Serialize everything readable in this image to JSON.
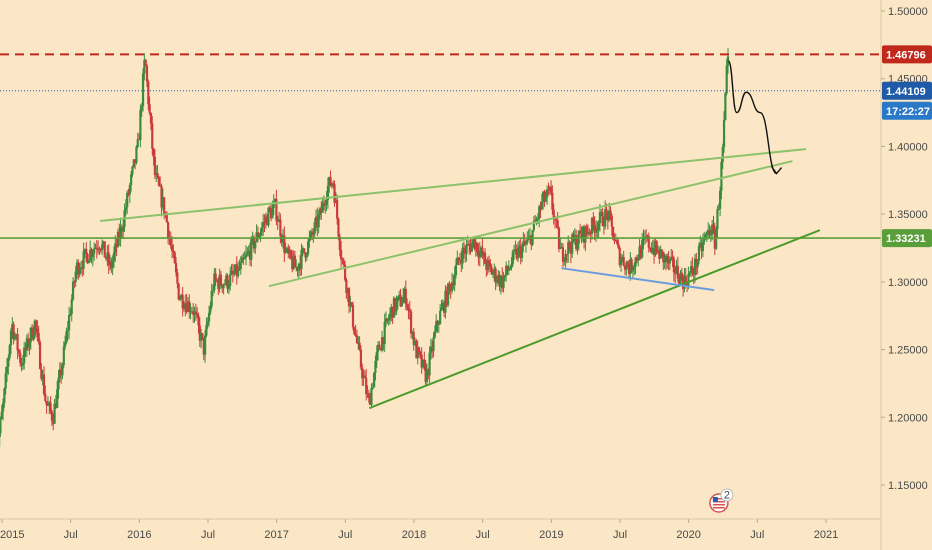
{
  "colors": {
    "background": "#fbe7c6",
    "up_candle": "#3c8b3c",
    "down_candle": "#cc3b3b",
    "resistance": "#c0281c",
    "price_line": "#1e5aa8",
    "support": "#5a9e3a",
    "light_trend": "#8cc26b",
    "dark_trend": "#4c9a2a",
    "neckline": "#6a9be0",
    "arrow": "#111111",
    "countdown_tag": "#2a79c9"
  },
  "chart_data": {
    "type": "candlestick",
    "title": "",
    "xlabel": "",
    "ylabel": "",
    "ylim": [
      1.12,
      1.515
    ],
    "y_ticks": [
      "1.50000",
      "1.45000",
      "1.40000",
      "1.35000",
      "1.30000",
      "1.25000",
      "1.20000",
      "1.15000"
    ],
    "x_ticks": [
      "2015",
      "Jul",
      "2016",
      "Jul",
      "2017",
      "Jul",
      "2018",
      "Jul",
      "2019",
      "Jul",
      "2020",
      "Jul",
      "2021"
    ],
    "x_tick_dates": [
      2015.0,
      2015.5,
      2016.0,
      2016.5,
      2017.0,
      2017.5,
      2018.0,
      2018.5,
      2019.0,
      2019.5,
      2020.0,
      2020.5,
      2021.0
    ],
    "price_path": [
      [
        2014.95,
        1.16
      ],
      [
        2015.02,
        1.21
      ],
      [
        2015.08,
        1.27
      ],
      [
        2015.15,
        1.24
      ],
      [
        2015.25,
        1.27
      ],
      [
        2015.33,
        1.21
      ],
      [
        2015.38,
        1.2
      ],
      [
        2015.45,
        1.24
      ],
      [
        2015.55,
        1.31
      ],
      [
        2015.63,
        1.32
      ],
      [
        2015.72,
        1.33
      ],
      [
        2015.8,
        1.31
      ],
      [
        2015.88,
        1.34
      ],
      [
        2016.0,
        1.4
      ],
      [
        2016.05,
        1.465
      ],
      [
        2016.12,
        1.38
      ],
      [
        2016.2,
        1.35
      ],
      [
        2016.3,
        1.29
      ],
      [
        2016.4,
        1.28
      ],
      [
        2016.48,
        1.25
      ],
      [
        2016.55,
        1.3
      ],
      [
        2016.65,
        1.3
      ],
      [
        2016.75,
        1.31
      ],
      [
        2016.85,
        1.33
      ],
      [
        2016.95,
        1.35
      ],
      [
        2017.0,
        1.355
      ],
      [
        2017.08,
        1.32
      ],
      [
        2017.15,
        1.31
      ],
      [
        2017.25,
        1.33
      ],
      [
        2017.33,
        1.35
      ],
      [
        2017.38,
        1.37
      ],
      [
        2017.42,
        1.375
      ],
      [
        2017.48,
        1.32
      ],
      [
        2017.55,
        1.28
      ],
      [
        2017.62,
        1.24
      ],
      [
        2017.68,
        1.21
      ],
      [
        2017.75,
        1.25
      ],
      [
        2017.85,
        1.28
      ],
      [
        2017.95,
        1.29
      ],
      [
        2018.02,
        1.25
      ],
      [
        2018.1,
        1.23
      ],
      [
        2018.18,
        1.27
      ],
      [
        2018.25,
        1.29
      ],
      [
        2018.35,
        1.32
      ],
      [
        2018.45,
        1.33
      ],
      [
        2018.55,
        1.31
      ],
      [
        2018.65,
        1.3
      ],
      [
        2018.75,
        1.32
      ],
      [
        2018.85,
        1.33
      ],
      [
        2018.95,
        1.36
      ],
      [
        2019.0,
        1.365
      ],
      [
        2019.08,
        1.32
      ],
      [
        2019.18,
        1.33
      ],
      [
        2019.3,
        1.34
      ],
      [
        2019.42,
        1.35
      ],
      [
        2019.5,
        1.32
      ],
      [
        2019.58,
        1.31
      ],
      [
        2019.7,
        1.33
      ],
      [
        2019.8,
        1.32
      ],
      [
        2019.9,
        1.31
      ],
      [
        2019.98,
        1.3
      ],
      [
        2020.05,
        1.31
      ],
      [
        2020.12,
        1.33
      ],
      [
        2020.17,
        1.34
      ],
      [
        2020.2,
        1.33
      ],
      [
        2020.23,
        1.36
      ],
      [
        2020.26,
        1.4
      ],
      [
        2020.29,
        1.46
      ]
    ],
    "levels": [
      {
        "label": "1.46796",
        "value": 1.46796,
        "style": "dashed",
        "color": "#c0281c"
      },
      {
        "label": "1.44109",
        "value": 1.44109,
        "style": "dotted",
        "color": "#1e5aa8"
      },
      {
        "label": "1.33231",
        "value": 1.33231,
        "style": "solid",
        "color": "#5a9e3a"
      }
    ],
    "countdown": "17:22:27",
    "trendlines": [
      {
        "name": "upper-channel",
        "color": "#8cc26b",
        "from": [
          2015.72,
          1.345
        ],
        "to": [
          2020.85,
          1.398
        ]
      },
      {
        "name": "middle-channel",
        "color": "#8cc26b",
        "from": [
          2016.95,
          1.297
        ],
        "to": [
          2020.75,
          1.389
        ]
      },
      {
        "name": "rising-support",
        "color": "#4c9a2a",
        "from": [
          2017.68,
          1.207
        ],
        "to": [
          2020.95,
          1.338
        ]
      },
      {
        "name": "neckline",
        "color": "#6a9be0",
        "from": [
          2019.08,
          1.31
        ],
        "to": [
          2020.18,
          1.294
        ]
      }
    ],
    "projection": [
      [
        2020.29,
        1.463
      ],
      [
        2020.35,
        1.425
      ],
      [
        2020.42,
        1.44
      ],
      [
        2020.52,
        1.425
      ],
      [
        2020.64,
        1.38
      ]
    ],
    "event_marker": {
      "count": "2",
      "date": 2020.22
    }
  }
}
